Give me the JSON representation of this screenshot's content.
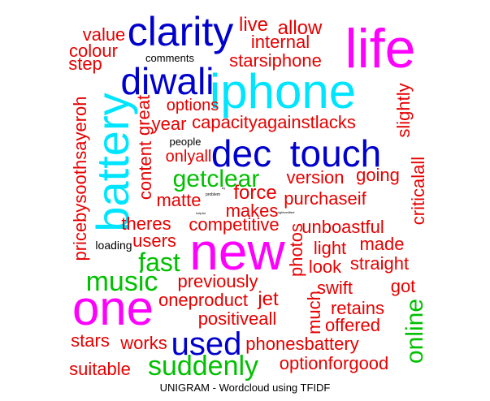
{
  "chart_data": {
    "type": "wordcloud",
    "title": "UNIGRAM - Wordcloud using TFIDF",
    "colors": {
      "red": "#e60000",
      "blue": "#0000cd",
      "magenta": "#ff00ff",
      "cyan": "#00e5ff",
      "green": "#00c000",
      "black": "#000000"
    },
    "words": [
      {
        "text": "life",
        "color": "magenta"
      },
      {
        "text": "iphone",
        "color": "cyan"
      },
      {
        "text": "new",
        "color": "magenta"
      },
      {
        "text": "one",
        "color": "magenta"
      },
      {
        "text": "battery",
        "color": "cyan"
      },
      {
        "text": "clarity",
        "color": "blue"
      },
      {
        "text": "diwali",
        "color": "blue"
      },
      {
        "text": "touch",
        "color": "blue"
      },
      {
        "text": "dec",
        "color": "blue"
      },
      {
        "text": "used",
        "color": "blue"
      },
      {
        "text": "suddenly",
        "color": "green"
      },
      {
        "text": "getclear",
        "color": "green"
      },
      {
        "text": "music",
        "color": "green"
      },
      {
        "text": "fast",
        "color": "green"
      },
      {
        "text": "online",
        "color": "green"
      },
      {
        "text": "live",
        "color": "red"
      },
      {
        "text": "allow",
        "color": "red"
      },
      {
        "text": "value",
        "color": "red"
      },
      {
        "text": "internal",
        "color": "red"
      },
      {
        "text": "colour",
        "color": "red"
      },
      {
        "text": "step",
        "color": "red"
      },
      {
        "text": "starsiphone",
        "color": "red"
      },
      {
        "text": "comments",
        "color": "black"
      },
      {
        "text": "options",
        "color": "red"
      },
      {
        "text": "great",
        "color": "red"
      },
      {
        "text": "year",
        "color": "red"
      },
      {
        "text": "capacityagainstlacks",
        "color": "red"
      },
      {
        "text": "slightly",
        "color": "red"
      },
      {
        "text": "people",
        "color": "black"
      },
      {
        "text": "onlyall",
        "color": "red"
      },
      {
        "text": "content",
        "color": "red"
      },
      {
        "text": "pricebysoothsayeroh",
        "color": "red"
      },
      {
        "text": "version",
        "color": "red"
      },
      {
        "text": "going",
        "color": "red"
      },
      {
        "text": "criticalall",
        "color": "red"
      },
      {
        "text": "matte",
        "color": "red"
      },
      {
        "text": "force",
        "color": "red"
      },
      {
        "text": "purchaseif",
        "color": "red"
      },
      {
        "text": "makes",
        "color": "red"
      },
      {
        "text": "theres",
        "color": "red"
      },
      {
        "text": "competitive",
        "color": "red"
      },
      {
        "text": "unboastful",
        "color": "red"
      },
      {
        "text": "users",
        "color": "red"
      },
      {
        "text": "loading",
        "color": "black"
      },
      {
        "text": "photos",
        "color": "red"
      },
      {
        "text": "light",
        "color": "red"
      },
      {
        "text": "made",
        "color": "red"
      },
      {
        "text": "look",
        "color": "red"
      },
      {
        "text": "straight",
        "color": "red"
      },
      {
        "text": "previously",
        "color": "red"
      },
      {
        "text": "swift",
        "color": "red"
      },
      {
        "text": "got",
        "color": "red"
      },
      {
        "text": "oneproduct",
        "color": "red"
      },
      {
        "text": "jet",
        "color": "red"
      },
      {
        "text": "much",
        "color": "red"
      },
      {
        "text": "retains",
        "color": "red"
      },
      {
        "text": "positiveall",
        "color": "red"
      },
      {
        "text": "offered",
        "color": "red"
      },
      {
        "text": "stars",
        "color": "red"
      },
      {
        "text": "works",
        "color": "red"
      },
      {
        "text": "phonesbattery",
        "color": "red"
      },
      {
        "text": "suitable",
        "color": "red"
      },
      {
        "text": "optionforgood",
        "color": "red"
      },
      {
        "text": "problem",
        "color": "black"
      },
      {
        "text": "helpful",
        "color": "black"
      },
      {
        "text": "rightverified",
        "color": "black"
      },
      {
        "text": "try",
        "color": "black"
      }
    ]
  }
}
